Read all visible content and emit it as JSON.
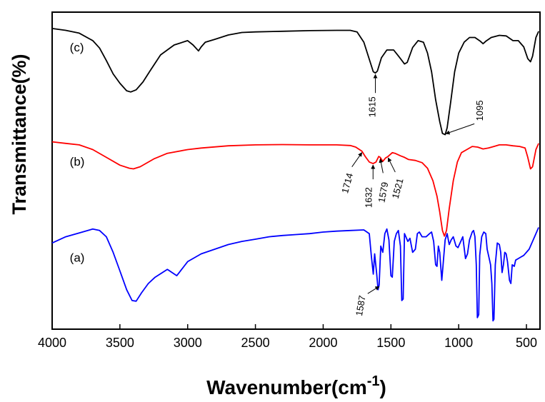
{
  "chart_data": {
    "type": "line",
    "xlabel": "Wavenumber(cm",
    "xlabel_sup": "-1",
    "xlabel_close": ")",
    "ylabel": "Transmittance(%)",
    "xlim": [
      4000,
      400
    ],
    "x_reversed": true,
    "x_ticks": [
      4000,
      3500,
      3000,
      2500,
      2000,
      1500,
      1000,
      500
    ],
    "ylim": [
      0,
      1
    ],
    "y_ticks_shown": false,
    "grid": false,
    "series": [
      {
        "name": "(c)",
        "color": "#000000",
        "points": [
          [
            4000,
            0.959
          ],
          [
            3900,
            0.953
          ],
          [
            3800,
            0.944
          ],
          [
            3700,
            0.92
          ],
          [
            3650,
            0.896
          ],
          [
            3600,
            0.856
          ],
          [
            3550,
            0.813
          ],
          [
            3500,
            0.783
          ],
          [
            3450,
            0.759
          ],
          [
            3420,
            0.755
          ],
          [
            3380,
            0.762
          ],
          [
            3330,
            0.787
          ],
          [
            3280,
            0.821
          ],
          [
            3200,
            0.874
          ],
          [
            3100,
            0.906
          ],
          [
            3000,
            0.92
          ],
          [
            2960,
            0.906
          ],
          [
            2920,
            0.887
          ],
          [
            2900,
            0.9
          ],
          [
            2870,
            0.915
          ],
          [
            2800,
            0.924
          ],
          [
            2700,
            0.938
          ],
          [
            2600,
            0.946
          ],
          [
            2500,
            0.948
          ],
          [
            2300,
            0.95
          ],
          [
            2100,
            0.952
          ],
          [
            1900,
            0.953
          ],
          [
            1800,
            0.953
          ],
          [
            1750,
            0.948
          ],
          [
            1700,
            0.915
          ],
          [
            1660,
            0.86
          ],
          [
            1630,
            0.82
          ],
          [
            1615,
            0.816
          ],
          [
            1600,
            0.822
          ],
          [
            1570,
            0.865
          ],
          [
            1530,
            0.89
          ],
          [
            1480,
            0.89
          ],
          [
            1440,
            0.868
          ],
          [
            1400,
            0.845
          ],
          [
            1380,
            0.85
          ],
          [
            1340,
            0.898
          ],
          [
            1300,
            0.92
          ],
          [
            1260,
            0.915
          ],
          [
            1230,
            0.88
          ],
          [
            1200,
            0.82
          ],
          [
            1170,
            0.73
          ],
          [
            1140,
            0.66
          ],
          [
            1120,
            0.622
          ],
          [
            1100,
            0.618
          ],
          [
            1085,
            0.64
          ],
          [
            1060,
            0.72
          ],
          [
            1030,
            0.82
          ],
          [
            1000,
            0.88
          ],
          [
            960,
            0.915
          ],
          [
            920,
            0.93
          ],
          [
            880,
            0.93
          ],
          [
            840,
            0.918
          ],
          [
            820,
            0.91
          ],
          [
            800,
            0.918
          ],
          [
            760,
            0.93
          ],
          [
            700,
            0.937
          ],
          [
            650,
            0.935
          ],
          [
            600,
            0.92
          ],
          [
            560,
            0.92
          ],
          [
            520,
            0.9
          ],
          [
            490,
            0.862
          ],
          [
            470,
            0.852
          ],
          [
            455,
            0.87
          ],
          [
            430,
            0.93
          ],
          [
            410,
            0.95
          ]
        ]
      },
      {
        "name": "(b)",
        "color": "#ff0000",
        "points": [
          [
            4000,
            0.595
          ],
          [
            3900,
            0.59
          ],
          [
            3800,
            0.585
          ],
          [
            3700,
            0.57
          ],
          [
            3600,
            0.545
          ],
          [
            3500,
            0.52
          ],
          [
            3430,
            0.51
          ],
          [
            3400,
            0.508
          ],
          [
            3350,
            0.515
          ],
          [
            3250,
            0.54
          ],
          [
            3150,
            0.558
          ],
          [
            3000,
            0.57
          ],
          [
            2900,
            0.575
          ],
          [
            2700,
            0.582
          ],
          [
            2500,
            0.585
          ],
          [
            2300,
            0.586
          ],
          [
            2100,
            0.585
          ],
          [
            1900,
            0.585
          ],
          [
            1800,
            0.583
          ],
          [
            1760,
            0.578
          ],
          [
            1714,
            0.565
          ],
          [
            1690,
            0.548
          ],
          [
            1660,
            0.53
          ],
          [
            1632,
            0.525
          ],
          [
            1610,
            0.53
          ],
          [
            1590,
            0.548
          ],
          [
            1579,
            0.545
          ],
          [
            1560,
            0.532
          ],
          [
            1540,
            0.543
          ],
          [
            1521,
            0.548
          ],
          [
            1490,
            0.56
          ],
          [
            1470,
            0.558
          ],
          [
            1430,
            0.55
          ],
          [
            1400,
            0.545
          ],
          [
            1370,
            0.538
          ],
          [
            1320,
            0.535
          ],
          [
            1270,
            0.528
          ],
          [
            1230,
            0.51
          ],
          [
            1190,
            0.47
          ],
          [
            1160,
            0.42
          ],
          [
            1140,
            0.37
          ],
          [
            1120,
            0.31
          ],
          [
            1105,
            0.292
          ],
          [
            1090,
            0.31
          ],
          [
            1070,
            0.38
          ],
          [
            1040,
            0.47
          ],
          [
            1010,
            0.53
          ],
          [
            980,
            0.56
          ],
          [
            940,
            0.57
          ],
          [
            900,
            0.58
          ],
          [
            860,
            0.578
          ],
          [
            820,
            0.572
          ],
          [
            780,
            0.575
          ],
          [
            740,
            0.58
          ],
          [
            700,
            0.585
          ],
          [
            650,
            0.585
          ],
          [
            600,
            0.582
          ],
          [
            550,
            0.58
          ],
          [
            510,
            0.575
          ],
          [
            490,
            0.545
          ],
          [
            470,
            0.508
          ],
          [
            455,
            0.515
          ],
          [
            430,
            0.57
          ],
          [
            410,
            0.59
          ]
        ]
      },
      {
        "name": "(a)",
        "color": "#0000ff",
        "points": [
          [
            4000,
            0.27
          ],
          [
            3900,
            0.29
          ],
          [
            3800,
            0.302
          ],
          [
            3700,
            0.315
          ],
          [
            3650,
            0.31
          ],
          [
            3600,
            0.29
          ],
          [
            3550,
            0.24
          ],
          [
            3500,
            0.18
          ],
          [
            3450,
            0.12
          ],
          [
            3410,
            0.085
          ],
          [
            3380,
            0.083
          ],
          [
            3340,
            0.11
          ],
          [
            3290,
            0.14
          ],
          [
            3240,
            0.16
          ],
          [
            3150,
            0.185
          ],
          [
            3080,
            0.165
          ],
          [
            3000,
            0.21
          ],
          [
            2900,
            0.235
          ],
          [
            2800,
            0.25
          ],
          [
            2700,
            0.265
          ],
          [
            2600,
            0.275
          ],
          [
            2500,
            0.282
          ],
          [
            2400,
            0.29
          ],
          [
            2300,
            0.294
          ],
          [
            2200,
            0.297
          ],
          [
            2100,
            0.3
          ],
          [
            2000,
            0.305
          ],
          [
            1900,
            0.308
          ],
          [
            1800,
            0.31
          ],
          [
            1700,
            0.312
          ],
          [
            1660,
            0.3
          ],
          [
            1645,
            0.23
          ],
          [
            1630,
            0.17
          ],
          [
            1620,
            0.235
          ],
          [
            1605,
            0.17
          ],
          [
            1595,
            0.12
          ],
          [
            1587,
            0.135
          ],
          [
            1575,
            0.26
          ],
          [
            1560,
            0.24
          ],
          [
            1545,
            0.3
          ],
          [
            1530,
            0.315
          ],
          [
            1515,
            0.28
          ],
          [
            1500,
            0.165
          ],
          [
            1490,
            0.16
          ],
          [
            1475,
            0.275
          ],
          [
            1460,
            0.3
          ],
          [
            1445,
            0.31
          ],
          [
            1430,
            0.26
          ],
          [
            1420,
            0.085
          ],
          [
            1410,
            0.09
          ],
          [
            1400,
            0.3
          ],
          [
            1385,
            0.285
          ],
          [
            1375,
            0.275
          ],
          [
            1360,
            0.285
          ],
          [
            1340,
            0.24
          ],
          [
            1320,
            0.25
          ],
          [
            1305,
            0.3
          ],
          [
            1290,
            0.305
          ],
          [
            1270,
            0.29
          ],
          [
            1240,
            0.29
          ],
          [
            1215,
            0.3
          ],
          [
            1200,
            0.305
          ],
          [
            1185,
            0.275
          ],
          [
            1170,
            0.2
          ],
          [
            1160,
            0.195
          ],
          [
            1150,
            0.26
          ],
          [
            1140,
            0.24
          ],
          [
            1125,
            0.15
          ],
          [
            1115,
            0.2
          ],
          [
            1100,
            0.28
          ],
          [
            1085,
            0.3
          ],
          [
            1070,
            0.265
          ],
          [
            1055,
            0.28
          ],
          [
            1040,
            0.29
          ],
          [
            1020,
            0.26
          ],
          [
            1005,
            0.255
          ],
          [
            990,
            0.27
          ],
          [
            970,
            0.29
          ],
          [
            950,
            0.22
          ],
          [
            935,
            0.235
          ],
          [
            920,
            0.28
          ],
          [
            900,
            0.305
          ],
          [
            890,
            0.31
          ],
          [
            880,
            0.29
          ],
          [
            870,
            0.2
          ],
          [
            862,
            0.03
          ],
          [
            852,
            0.04
          ],
          [
            845,
            0.23
          ],
          [
            830,
            0.29
          ],
          [
            815,
            0.305
          ],
          [
            800,
            0.3
          ],
          [
            790,
            0.25
          ],
          [
            775,
            0.22
          ],
          [
            765,
            0.2
          ],
          [
            755,
            0.14
          ],
          [
            747,
            0.02
          ],
          [
            740,
            0.025
          ],
          [
            730,
            0.2
          ],
          [
            715,
            0.27
          ],
          [
            700,
            0.265
          ],
          [
            690,
            0.24
          ],
          [
            680,
            0.175
          ],
          [
            670,
            0.2
          ],
          [
            660,
            0.24
          ],
          [
            650,
            0.235
          ],
          [
            640,
            0.21
          ],
          [
            625,
            0.15
          ],
          [
            615,
            0.14
          ],
          [
            605,
            0.2
          ],
          [
            590,
            0.195
          ],
          [
            580,
            0.215
          ],
          [
            560,
            0.22
          ],
          [
            540,
            0.225
          ],
          [
            520,
            0.23
          ],
          [
            500,
            0.24
          ],
          [
            480,
            0.25
          ],
          [
            460,
            0.27
          ],
          [
            440,
            0.29
          ],
          [
            420,
            0.31
          ],
          [
            410,
            0.32
          ]
        ]
      }
    ],
    "curve_labels": [
      {
        "text": "(c)",
        "x": 3870,
        "y": 0.885
      },
      {
        "text": "(b)",
        "x": 3870,
        "y": 0.518
      },
      {
        "text": "(a)",
        "x": 3870,
        "y": 0.21
      }
    ],
    "annotations": [
      {
        "text": "1615",
        "series": "(c)",
        "x": 1615
      },
      {
        "text": "1095",
        "series": "(c)",
        "x": 1095
      },
      {
        "text": "1714",
        "series": "(b)",
        "x": 1714
      },
      {
        "text": "1632",
        "series": "(b)",
        "x": 1632
      },
      {
        "text": "1579",
        "series": "(b)",
        "x": 1579
      },
      {
        "text": "1521",
        "series": "(b)",
        "x": 1521
      },
      {
        "text": "1587",
        "series": "(a)",
        "x": 1587
      }
    ]
  }
}
